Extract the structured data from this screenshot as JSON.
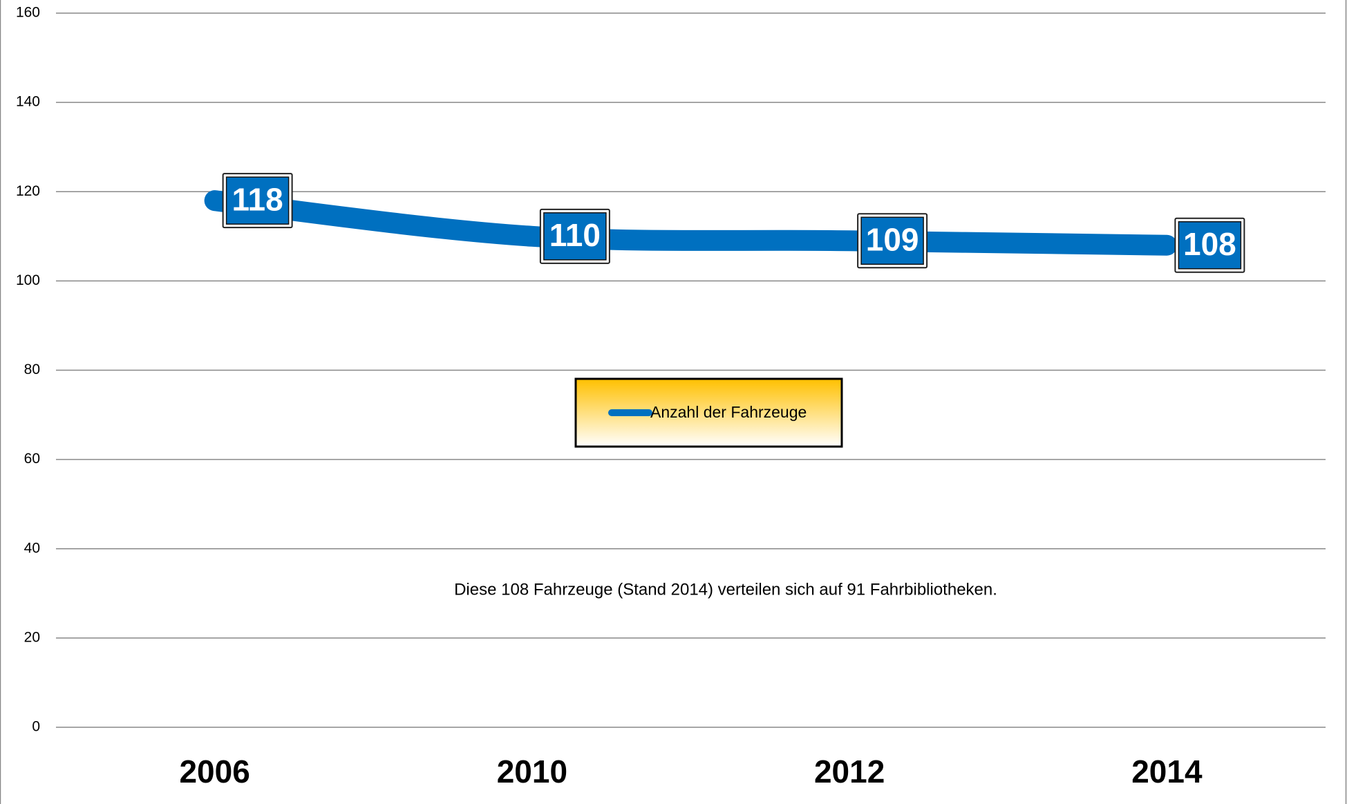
{
  "chart_data": {
    "type": "line",
    "categories": [
      "2006",
      "2010",
      "2012",
      "2014"
    ],
    "series": [
      {
        "name": "Anzahl der Fahrzeuge",
        "color": "#0070c0",
        "values": [
          118,
          110,
          109,
          108
        ]
      }
    ],
    "ylim": [
      0,
      160
    ],
    "yticks": [
      0,
      20,
      40,
      60,
      80,
      100,
      120,
      140,
      160
    ],
    "grid": true,
    "annotation": "Diese 108 Fahrzeuge (Stand 2014) verteilen sich auf 91 Fahrbibliotheken."
  }
}
